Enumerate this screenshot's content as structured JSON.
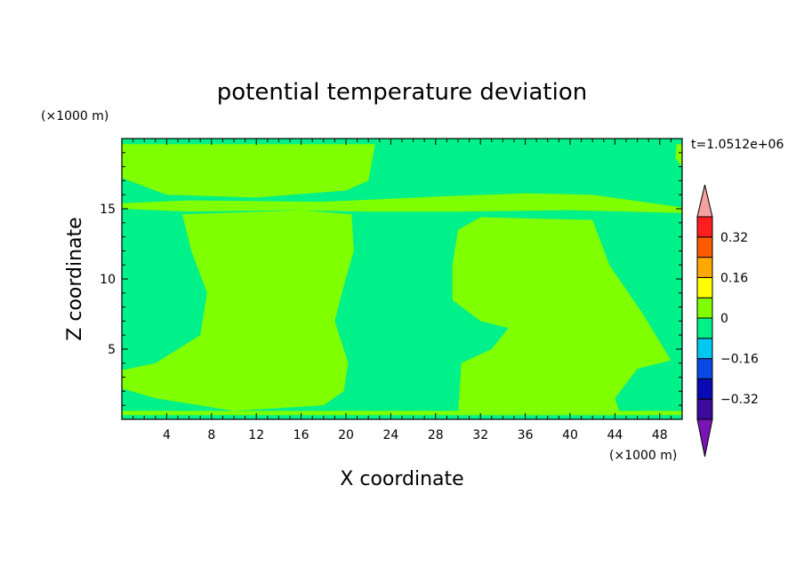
{
  "chart_data": {
    "type": "heatmap",
    "title": "potential temperature deviation",
    "xlabel": "X coordinate",
    "ylabel": "Z coordinate",
    "x_unit": "(×1000 m)",
    "y_unit": "(×1000 m)",
    "time_label": "t=1.0512e+06",
    "xlim": [
      0,
      50
    ],
    "ylim": [
      0,
      20
    ],
    "x_ticks": [
      4,
      8,
      12,
      16,
      20,
      24,
      28,
      32,
      36,
      40,
      44,
      48
    ],
    "y_ticks": [
      5,
      10,
      15
    ],
    "colorbar": {
      "levels": [
        -0.4,
        -0.32,
        -0.24,
        -0.16,
        -0.08,
        0,
        0.08,
        0.16,
        0.24,
        0.32,
        0.4
      ],
      "colors": [
        "#3a0a9c",
        "#0a0ab4",
        "#0a48e6",
        "#00c8f0",
        "#00f08a",
        "#80ff00",
        "#ffff00",
        "#ffa800",
        "#ff5a00",
        "#ff1e1e"
      ],
      "under_color": "#7a14b4",
      "over_color": "#f5a0a0",
      "tick_labels": [
        "0.32",
        "0.16",
        "0",
        "−0.16",
        "−0.32"
      ]
    },
    "background_color": "#00f08a",
    "field_regions": [
      {
        "level": "0 to 0.08",
        "color": "#80ff00",
        "outline": [
          [
            0,
            19.6
          ],
          [
            22.6,
            19.6
          ],
          [
            22,
            17
          ],
          [
            20,
            16.3
          ],
          [
            12,
            15.8
          ],
          [
            4,
            16
          ],
          [
            0,
            17.2
          ]
        ]
      },
      {
        "level": "0 to 0.08",
        "color": "#80ff00",
        "outline": [
          [
            0,
            15.4
          ],
          [
            6,
            15.6
          ],
          [
            18,
            15.5
          ],
          [
            29,
            15.9
          ],
          [
            36,
            16.1
          ],
          [
            42,
            16
          ],
          [
            50,
            15.1
          ],
          [
            50,
            14.7
          ],
          [
            40,
            14.9
          ],
          [
            30,
            14.8
          ],
          [
            22,
            14.8
          ],
          [
            15,
            14.9
          ],
          [
            6,
            14.8
          ],
          [
            0,
            15
          ]
        ]
      },
      {
        "level": "0 to 0.08",
        "color": "#80ff00",
        "outline": [
          [
            5.4,
            14.6
          ],
          [
            16,
            14.9
          ],
          [
            20.5,
            14.6
          ],
          [
            20.7,
            12
          ],
          [
            19.8,
            9.5
          ],
          [
            19,
            7
          ],
          [
            20.2,
            4
          ],
          [
            19.8,
            2
          ],
          [
            18,
            1
          ],
          [
            10,
            0.6
          ],
          [
            3,
            1.5
          ],
          [
            0,
            2.2
          ],
          [
            0,
            3.5
          ],
          [
            3,
            4
          ],
          [
            7,
            6
          ],
          [
            7.6,
            9
          ],
          [
            6.2,
            12
          ]
        ]
      },
      {
        "level": "0 to 0.08",
        "color": "#80ff00",
        "outline": [
          [
            32,
            14.4
          ],
          [
            42,
            14.2
          ],
          [
            43.5,
            11
          ],
          [
            46.5,
            7.5
          ],
          [
            49,
            4.2
          ],
          [
            46,
            3.6
          ],
          [
            44,
            1.5
          ],
          [
            44.5,
            0.3
          ],
          [
            30,
            0.3
          ],
          [
            30.3,
            4
          ],
          [
            33,
            5
          ],
          [
            34.5,
            6.5
          ],
          [
            32,
            7
          ],
          [
            29.5,
            8.5
          ],
          [
            29.5,
            11
          ],
          [
            30,
            13.5
          ]
        ]
      },
      {
        "level": "0 to 0.08",
        "color": "#80ff00",
        "outline": [
          [
            0,
            0.3
          ],
          [
            50,
            0.3
          ],
          [
            50,
            0.6
          ],
          [
            0,
            0.6
          ]
        ]
      },
      {
        "level": "0 to 0.08",
        "color": "#80ff00",
        "outline": [
          [
            49.5,
            19.6
          ],
          [
            50,
            19.6
          ],
          [
            50,
            18
          ],
          [
            49.4,
            18.6
          ]
        ]
      }
    ]
  }
}
